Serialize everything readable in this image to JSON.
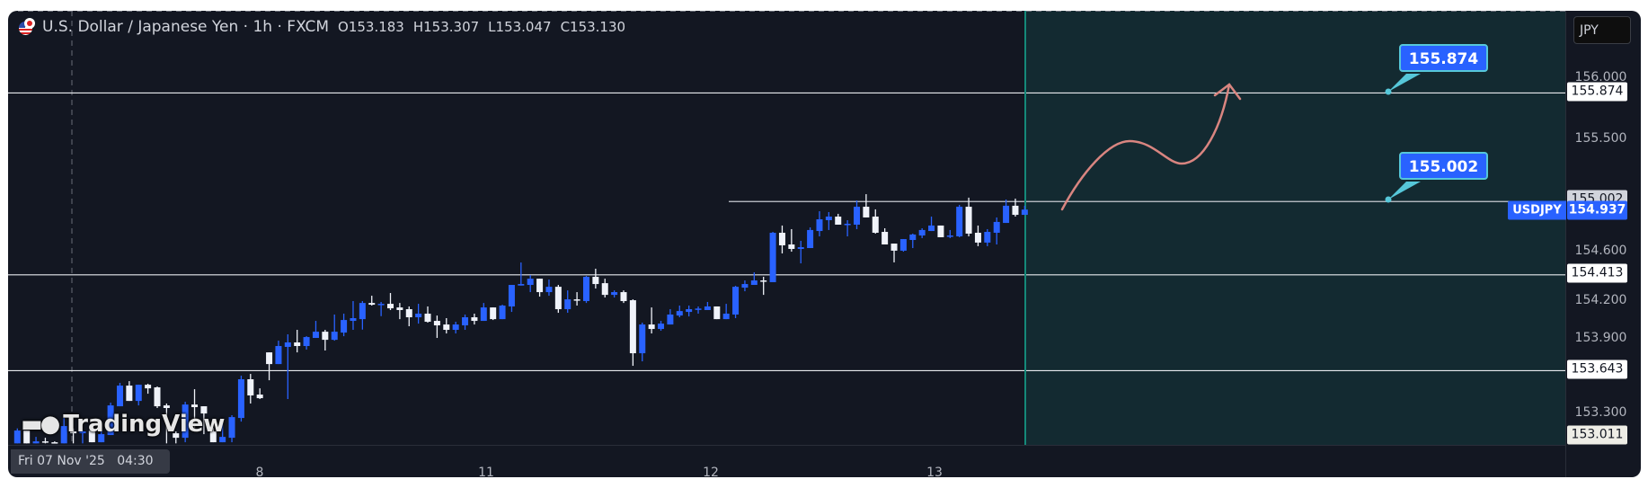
{
  "header": {
    "symbol_title": "U.S. Dollar / Japanese Yen · 1h · FXCM",
    "open": "O153.183",
    "high": "H153.307",
    "low": "L153.047",
    "close": "C153.130"
  },
  "currency_button": "JPY",
  "price_axis": {
    "ticks": [
      "156.000",
      "155.500",
      "154.600",
      "154.200",
      "153.900",
      "153.300"
    ],
    "tick_values": [
      156.0,
      155.5,
      154.6,
      154.2,
      153.9,
      153.3
    ],
    "level_labels": [
      "155.874",
      "155.002",
      "154.413",
      "153.643",
      "153.011"
    ],
    "level_values": [
      155.874,
      155.002,
      154.413,
      153.643,
      153.011
    ],
    "symbol_tag": "USDJPY",
    "last_price": "154.937",
    "last_price_value": 154.937
  },
  "time_axis": {
    "crosshair_date": "Fri 07 Nov '25",
    "crosshair_time": "04:30",
    "labels": [
      "8",
      "11",
      "12",
      "13"
    ]
  },
  "callouts": [
    "155.874",
    "155.002"
  ],
  "watermark": "TradingView",
  "colors": {
    "up": "#2962ff",
    "down": "#f0f3fa",
    "background": "#131722",
    "projection_zone": "#132a31",
    "arrow": "#d98580",
    "callout_border": "#56c7d9"
  },
  "chart_data": {
    "type": "candlestick",
    "title": "U.S. Dollar / Japanese Yen · 1h · FXCM",
    "ylim": [
      152.95,
      156.3
    ],
    "candles_ohlc": [
      [
        153.059,
        153.179,
        153.059,
        153.162
      ],
      [
        153.162,
        153.162,
        153.059,
        153.059
      ],
      [
        153.059,
        153.111,
        153.059,
        153.075
      ],
      [
        153.075,
        153.104,
        153.059,
        153.068
      ],
      [
        153.068,
        153.075,
        153.059,
        153.063
      ],
      [
        153.059,
        153.263,
        153.059,
        153.198
      ],
      [
        153.155,
        153.179,
        153.059,
        153.14
      ],
      [
        153.14,
        153.162,
        153.059,
        153.155
      ],
      [
        153.162,
        153.162,
        153.068,
        153.068
      ],
      [
        153.068,
        153.155,
        153.068,
        153.133
      ],
      [
        153.126,
        153.386,
        153.126,
        153.364
      ],
      [
        153.357,
        153.545,
        153.357,
        153.523
      ],
      [
        153.523,
        153.559,
        153.4,
        153.4
      ],
      [
        153.4,
        153.53,
        153.364,
        153.53
      ],
      [
        153.53,
        153.538,
        153.458,
        153.501
      ],
      [
        153.509,
        153.516,
        153.343,
        153.357
      ],
      [
        153.364,
        153.379,
        153.059,
        153.343
      ],
      [
        153.14,
        153.155,
        153.059,
        153.104
      ],
      [
        153.104,
        153.393,
        153.068,
        153.371
      ],
      [
        153.371,
        153.494,
        153.155,
        153.35
      ],
      [
        153.357,
        153.357,
        153.133,
        153.299
      ],
      [
        153.155,
        153.184,
        153.068,
        153.068
      ],
      [
        153.068,
        153.241,
        153.068,
        153.111
      ],
      [
        153.104,
        153.285,
        153.068,
        153.27
      ],
      [
        153.263,
        153.603,
        153.234,
        153.574
      ],
      [
        153.574,
        153.617,
        153.379,
        153.444
      ],
      [
        153.451,
        153.501,
        153.415,
        153.422
      ],
      [
        153.79,
        153.79,
        153.566,
        153.696
      ],
      [
        153.696,
        153.884,
        153.696,
        153.841
      ],
      [
        153.834,
        153.935,
        153.415,
        153.87
      ],
      [
        153.87,
        153.971,
        153.79,
        153.841
      ],
      [
        153.841,
        153.92,
        153.812,
        153.913
      ],
      [
        153.906,
        154.043,
        153.906,
        153.956
      ],
      [
        153.956,
        153.971,
        153.805,
        153.891
      ],
      [
        153.891,
        154.094,
        153.884,
        153.956
      ],
      [
        153.949,
        154.101,
        153.92,
        154.05
      ],
      [
        154.043,
        154.202,
        153.971,
        154.065
      ],
      [
        154.057,
        154.202,
        153.973,
        154.187
      ],
      [
        154.187,
        154.245,
        154.166,
        154.173
      ],
      [
        154.175,
        154.195,
        154.081,
        154.18
      ],
      [
        154.18,
        154.267,
        154.13,
        154.144
      ],
      [
        154.151,
        154.187,
        154.057,
        154.13
      ],
      [
        154.137,
        154.159,
        154.0,
        154.072
      ],
      [
        154.072,
        154.18,
        154.021,
        154.101
      ],
      [
        154.101,
        154.159,
        154.029,
        154.036
      ],
      [
        154.043,
        154.086,
        153.906,
        154.007
      ],
      [
        154.014,
        154.065,
        153.942,
        153.971
      ],
      [
        153.971,
        154.036,
        153.942,
        154.014
      ],
      [
        154.007,
        154.094,
        153.971,
        154.072
      ],
      [
        154.072,
        154.101,
        154.014,
        154.043
      ],
      [
        154.043,
        154.187,
        154.043,
        154.151
      ],
      [
        154.151,
        154.151,
        154.05,
        154.057
      ],
      [
        154.057,
        154.173,
        154.057,
        154.166
      ],
      [
        154.159,
        154.332,
        154.115,
        154.332
      ],
      [
        154.327,
        154.512,
        154.327,
        154.339
      ],
      [
        154.332,
        154.411,
        154.274,
        154.382
      ],
      [
        154.382,
        154.382,
        154.238,
        154.274
      ],
      [
        154.274,
        154.375,
        154.245,
        154.317
      ],
      [
        154.317,
        154.332,
        154.108,
        154.137
      ],
      [
        154.137,
        154.288,
        154.108,
        154.216
      ],
      [
        154.216,
        154.274,
        154.166,
        154.211
      ],
      [
        154.202,
        154.404,
        154.187,
        154.397
      ],
      [
        154.397,
        154.462,
        154.303,
        154.339
      ],
      [
        154.346,
        154.382,
        154.231,
        154.252
      ],
      [
        154.252,
        154.288,
        154.231,
        154.274
      ],
      [
        154.274,
        154.288,
        154.187,
        154.202
      ],
      [
        154.209,
        154.216,
        153.682,
        153.783
      ],
      [
        153.783,
        154.029,
        153.718,
        154.014
      ],
      [
        154.014,
        154.151,
        153.942,
        153.978
      ],
      [
        153.978,
        154.043,
        153.964,
        154.021
      ],
      [
        154.014,
        154.137,
        154.014,
        154.094
      ],
      [
        154.086,
        154.166,
        154.072,
        154.122
      ],
      [
        154.115,
        154.166,
        154.079,
        154.137
      ],
      [
        154.134,
        154.159,
        154.101,
        154.142
      ],
      [
        154.13,
        154.195,
        154.13,
        154.159
      ],
      [
        154.159,
        154.159,
        154.057,
        154.057
      ],
      [
        154.057,
        154.18,
        154.057,
        154.101
      ],
      [
        154.094,
        154.325,
        154.065,
        154.317
      ],
      [
        154.31,
        154.368,
        154.281,
        154.339
      ],
      [
        154.332,
        154.433,
        154.332,
        154.368
      ],
      [
        154.368,
        154.397,
        154.252,
        154.361
      ],
      [
        154.354,
        154.758,
        154.354,
        154.751
      ],
      [
        154.751,
        154.809,
        154.585,
        154.65
      ],
      [
        154.657,
        154.78,
        154.599,
        154.621
      ],
      [
        154.621,
        154.686,
        154.505,
        154.635
      ],
      [
        154.628,
        154.794,
        154.628,
        154.773
      ],
      [
        154.765,
        154.924,
        154.722,
        154.859
      ],
      [
        154.852,
        154.917,
        154.773,
        154.881
      ],
      [
        154.881,
        154.903,
        154.816,
        154.816
      ],
      [
        154.818,
        154.852,
        154.722,
        154.823
      ],
      [
        154.816,
        155.011,
        154.78,
        154.96
      ],
      [
        154.96,
        155.061,
        154.874,
        154.874
      ],
      [
        154.881,
        154.939,
        154.744,
        154.751
      ],
      [
        154.758,
        154.787,
        154.657,
        154.657
      ],
      [
        154.664,
        154.664,
        154.513,
        154.607
      ],
      [
        154.607,
        154.7,
        154.599,
        154.7
      ],
      [
        154.693,
        154.744,
        154.628,
        154.737
      ],
      [
        154.729,
        154.787,
        154.708,
        154.773
      ],
      [
        154.765,
        154.881,
        154.765,
        154.809
      ],
      [
        154.809,
        154.809,
        154.715,
        154.715
      ],
      [
        154.722,
        154.773,
        154.708,
        154.729
      ],
      [
        154.722,
        154.975,
        154.715,
        154.96
      ],
      [
        154.96,
        155.033,
        154.722,
        154.744
      ],
      [
        154.751,
        154.809,
        154.643,
        154.672
      ],
      [
        154.672,
        154.78,
        154.643,
        154.758
      ],
      [
        154.751,
        154.874,
        154.657,
        154.838
      ],
      [
        154.83,
        155.018,
        154.83,
        154.968
      ],
      [
        154.968,
        155.025,
        154.881,
        154.895
      ],
      [
        154.895,
        154.968,
        154.895,
        154.937
      ]
    ],
    "horizontal_levels": [
      155.874,
      155.002,
      154.413,
      153.643
    ]
  }
}
